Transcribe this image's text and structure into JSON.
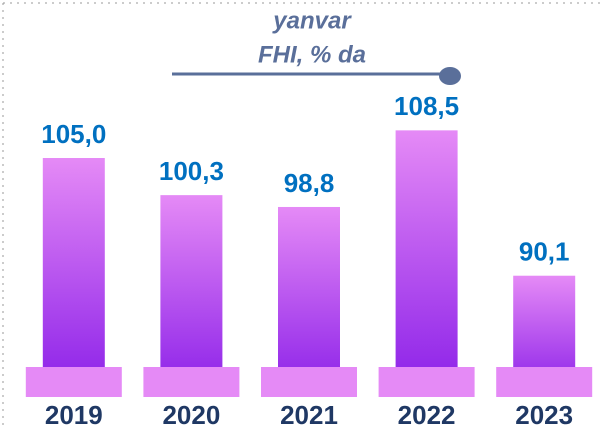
{
  "chart_data": {
    "type": "bar",
    "title": "yanvar",
    "subtitle": "FHI, % da",
    "categories": [
      "2019",
      "2020",
      "2021",
      "2022",
      "2023"
    ],
    "values": [
      105.0,
      100.3,
      98.8,
      108.5,
      90.1
    ],
    "value_labels": [
      "105,0",
      "100,3",
      "98,8",
      "108,5",
      "90,1"
    ],
    "color_top": "#e58af6",
    "color_bottom": "#8a1fe8",
    "ylim": [
      75,
      125
    ]
  }
}
